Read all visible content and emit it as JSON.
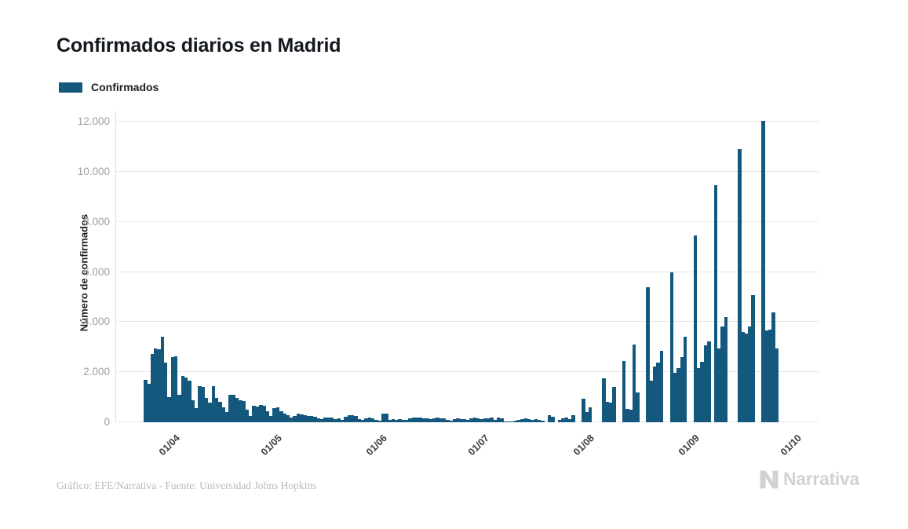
{
  "title": "Confirmados diarios en Madrid",
  "legend": {
    "label": "Confirmados",
    "color": "#15587e"
  },
  "footer": {
    "credit": "Gráfico: EFE/Narrativa - Fuente: Universidad Johns Hopkins",
    "brand": "Narrativa"
  },
  "chart_data": {
    "type": "bar",
    "title": "Confirmados diarios en Madrid",
    "series_name": "Confirmados",
    "xlabel": "",
    "ylabel": "Número de confirmados",
    "ylim": [
      0,
      12000
    ],
    "grid": "horizontal",
    "legend_position": "top-left",
    "bar_color": "#15587e",
    "y_ticks": [
      {
        "value": 0,
        "label": "0"
      },
      {
        "value": 2000,
        "label": "2.000"
      },
      {
        "value": 4000,
        "label": "4.000"
      },
      {
        "value": 6000,
        "label": "6.000"
      },
      {
        "value": 8000,
        "label": "8.000"
      },
      {
        "value": 10000,
        "label": "10.000"
      },
      {
        "value": 12000,
        "label": "12.000"
      }
    ],
    "x_ticks": [
      {
        "day_index": 9,
        "label": "01/04"
      },
      {
        "day_index": 39,
        "label": "01/05"
      },
      {
        "day_index": 70,
        "label": "01/06"
      },
      {
        "day_index": 100,
        "label": "01/07"
      },
      {
        "day_index": 131,
        "label": "01/08"
      },
      {
        "day_index": 162,
        "label": "01/09"
      },
      {
        "day_index": 192,
        "label": "01/10"
      }
    ],
    "x_unit": "day",
    "values": [
      1700,
      1550,
      2730,
      2950,
      2920,
      3400,
      2370,
      990,
      2600,
      2620,
      1100,
      1850,
      1800,
      1650,
      870,
      560,
      1450,
      1400,
      970,
      780,
      1440,
      970,
      820,
      610,
      400,
      1100,
      1100,
      970,
      890,
      840,
      510,
      250,
      660,
      640,
      680,
      660,
      450,
      250,
      560,
      610,
      450,
      330,
      270,
      200,
      250,
      330,
      310,
      290,
      260,
      250,
      230,
      150,
      120,
      180,
      200,
      180,
      120,
      150,
      100,
      215,
      270,
      290,
      240,
      120,
      95,
      150,
      200,
      150,
      100,
      70,
      350,
      330,
      100,
      120,
      80,
      120,
      100,
      80,
      150,
      180,
      200,
      190,
      150,
      160,
      120,
      150,
      190,
      170,
      150,
      100,
      60,
      120,
      150,
      140,
      120,
      100,
      160,
      190,
      160,
      130,
      160,
      150,
      190,
      80,
      200,
      145,
      40,
      20,
      40,
      60,
      90,
      115,
      145,
      125,
      90,
      115,
      90,
      60,
      0,
      270,
      230,
      0,
      95,
      165,
      175,
      115,
      280,
      0,
      0,
      930,
      400,
      600,
      0,
      0,
      0,
      1770,
      830,
      780,
      1400,
      0,
      0,
      2440,
      520,
      500,
      3100,
      1190,
      0,
      0,
      5380,
      1650,
      2230,
      2380,
      2850,
      0,
      0,
      5980,
      1960,
      2170,
      2590,
      3420,
      0,
      0,
      7460,
      2150,
      2420,
      3060,
      3240,
      0,
      9450,
      2930,
      3830,
      4200,
      0,
      0,
      0,
      10900,
      3600,
      3550,
      3830,
      5080,
      0,
      0,
      12020,
      3660,
      3710,
      4390,
      2930
    ]
  }
}
